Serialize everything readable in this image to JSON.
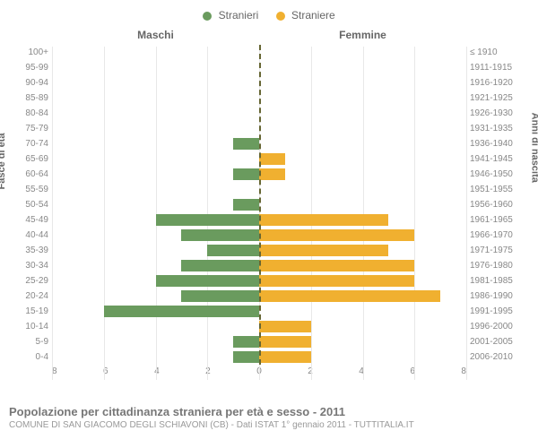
{
  "legend": {
    "male": {
      "label": "Stranieri",
      "color": "#6a9b5e"
    },
    "female": {
      "label": "Straniere",
      "color": "#f0b030"
    }
  },
  "headers": {
    "male": "Maschi",
    "female": "Femmine",
    "age_axis": "Fasce di età",
    "birth_axis": "Anni di nascita"
  },
  "chart": {
    "type": "population-pyramid",
    "xmax": 8,
    "xticks": [
      8,
      6,
      4,
      2,
      0,
      2,
      4,
      6,
      8
    ],
    "grid_color": "#e8e8e8",
    "center_line_color": "#666633",
    "background_color": "#ffffff",
    "male_color": "#6a9b5e",
    "female_color": "#f0b030",
    "rows": [
      {
        "age": "100+",
        "birth": "≤ 1910",
        "m": 0,
        "f": 0
      },
      {
        "age": "95-99",
        "birth": "1911-1915",
        "m": 0,
        "f": 0
      },
      {
        "age": "90-94",
        "birth": "1916-1920",
        "m": 0,
        "f": 0
      },
      {
        "age": "85-89",
        "birth": "1921-1925",
        "m": 0,
        "f": 0
      },
      {
        "age": "80-84",
        "birth": "1926-1930",
        "m": 0,
        "f": 0
      },
      {
        "age": "75-79",
        "birth": "1931-1935",
        "m": 0,
        "f": 0
      },
      {
        "age": "70-74",
        "birth": "1936-1940",
        "m": 1,
        "f": 0
      },
      {
        "age": "65-69",
        "birth": "1941-1945",
        "m": 0,
        "f": 1
      },
      {
        "age": "60-64",
        "birth": "1946-1950",
        "m": 1,
        "f": 1
      },
      {
        "age": "55-59",
        "birth": "1951-1955",
        "m": 0,
        "f": 0
      },
      {
        "age": "50-54",
        "birth": "1956-1960",
        "m": 1,
        "f": 0
      },
      {
        "age": "45-49",
        "birth": "1961-1965",
        "m": 4,
        "f": 5
      },
      {
        "age": "40-44",
        "birth": "1966-1970",
        "m": 3,
        "f": 6
      },
      {
        "age": "35-39",
        "birth": "1971-1975",
        "m": 2,
        "f": 5
      },
      {
        "age": "30-34",
        "birth": "1976-1980",
        "m": 3,
        "f": 6
      },
      {
        "age": "25-29",
        "birth": "1981-1985",
        "m": 4,
        "f": 6
      },
      {
        "age": "20-24",
        "birth": "1986-1990",
        "m": 3,
        "f": 7
      },
      {
        "age": "15-19",
        "birth": "1991-1995",
        "m": 6,
        "f": 0
      },
      {
        "age": "10-14",
        "birth": "1996-2000",
        "m": 0,
        "f": 2
      },
      {
        "age": "5-9",
        "birth": "2001-2005",
        "m": 1,
        "f": 2
      },
      {
        "age": "0-4",
        "birth": "2006-2010",
        "m": 1,
        "f": 2
      }
    ]
  },
  "footer": {
    "title": "Popolazione per cittadinanza straniera per età e sesso - 2011",
    "subtitle": "COMUNE DI SAN GIACOMO DEGLI SCHIAVONI (CB) - Dati ISTAT 1° gennaio 2011 - TUTTITALIA.IT"
  }
}
